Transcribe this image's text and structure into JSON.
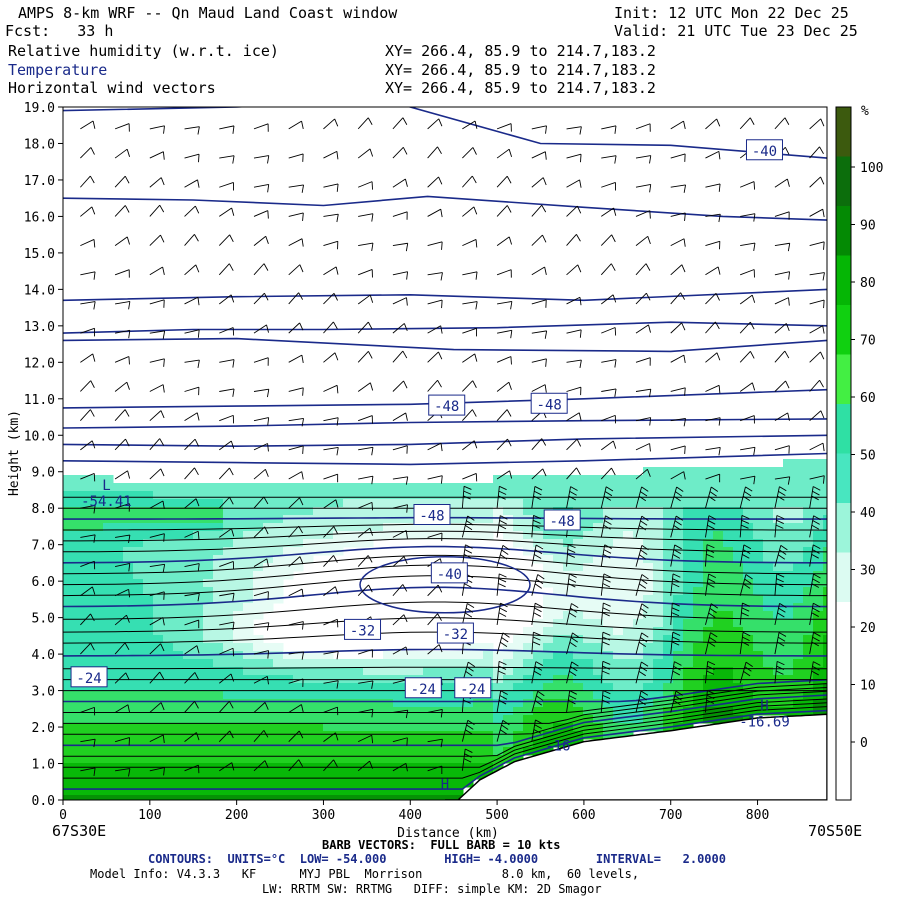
{
  "header": {
    "title": "AMPS 8-km WRF -- Qn Maud Land Coast window",
    "init": "Init: 12 UTC Mon 22 Dec 25",
    "fcst": "Fcst:   33 h",
    "valid": "Valid: 21 UTC Tue 23 Dec 25",
    "fields": [
      {
        "name": "Relative humidity (w.r.t. ice)",
        "xy": "XY= 266.4, 85.9 to 214.7,183.2",
        "color": "#000000"
      },
      {
        "name": "Temperature",
        "xy": "XY= 266.4, 85.9 to 214.7,183.2",
        "color": "#1a2a8a"
      },
      {
        "name": "Horizontal wind vectors",
        "xy": "XY= 266.4, 85.9 to 214.7,183.2",
        "color": "#000000"
      }
    ]
  },
  "footer": {
    "left_point": "67S30E",
    "right_point": "70S50E",
    "barb_info": "BARB VECTORS:  FULL BARB = 10 kts",
    "contours": "CONTOURS:  UNITS=°C  LOW= -54.000        HIGH= -4.0000        INTERVAL=   2.0000",
    "model_info": "Model Info: V4.3.3   KF      MYJ PBL  Morrison           8.0 km,  60 levels,",
    "physics": "LW: RRTM SW: RRTMG   DIFF: simple KM: 2D Smagor"
  },
  "chart_data": {
    "type": "heatmap",
    "title": "Relative humidity (w.r.t. ice) / Temperature / Horizontal wind vectors",
    "xlabel": "Distance (km)",
    "ylabel": "Height (km)",
    "xlim": [
      0,
      880
    ],
    "ylim": [
      0,
      19
    ],
    "x_ticks": [
      0,
      100,
      200,
      300,
      400,
      500,
      600,
      700,
      800
    ],
    "y_ticks": [
      "0.0",
      "1.0",
      "2.0",
      "3.0",
      "4.0",
      "5.0",
      "6.0",
      "7.0",
      "8.0",
      "9.0",
      "10.0",
      "11.0",
      "12.0",
      "13.0",
      "14.0",
      "15.0",
      "16.0",
      "17.0",
      "18.0",
      "19.0"
    ],
    "colorbar": {
      "unit": "%",
      "labels": [
        0,
        10,
        20,
        30,
        40,
        50,
        60,
        70,
        80,
        90,
        100
      ],
      "colors": [
        "#ffffff",
        "#ffffff",
        "#ffffff",
        "#ffffff",
        "#dcfbf2",
        "#9cf5da",
        "#48e6c0",
        "#2fe0a4",
        "#43ef43",
        "#10d010",
        "#05b605",
        "#048a04",
        "#0c6e0c",
        "#3c5a0e"
      ]
    },
    "temperature_labels": [
      {
        "text": "-40",
        "x": 808,
        "y": 17.8
      },
      {
        "text": "-48",
        "x": 442,
        "y": 10.8
      },
      {
        "text": "-48",
        "x": 560,
        "y": 10.85
      },
      {
        "text": "-48",
        "x": 425,
        "y": 7.8
      },
      {
        "text": "-48",
        "x": 575,
        "y": 7.65
      },
      {
        "text": "-40",
        "x": 445,
        "y": 6.2
      },
      {
        "text": "-32",
        "x": 345,
        "y": 4.65
      },
      {
        "text": "-32",
        "x": 452,
        "y": 4.55
      },
      {
        "text": "-24",
        "x": 30,
        "y": 3.35
      },
      {
        "text": "-24",
        "x": 415,
        "y": 3.05
      },
      {
        "text": "-24",
        "x": 472,
        "y": 3.05
      }
    ],
    "extrema": [
      {
        "kind": "L",
        "value": "-54.41",
        "x": 50,
        "y": 8.5
      },
      {
        "kind": "H",
        "value": "-16.69",
        "x": 808,
        "y": 2.45
      },
      {
        "kind": "H",
        "value": "",
        "x": 440,
        "y": 0.3
      },
      {
        "kind": "",
        "value": "-16",
        "x": 570,
        "y": 1.8
      }
    ]
  }
}
